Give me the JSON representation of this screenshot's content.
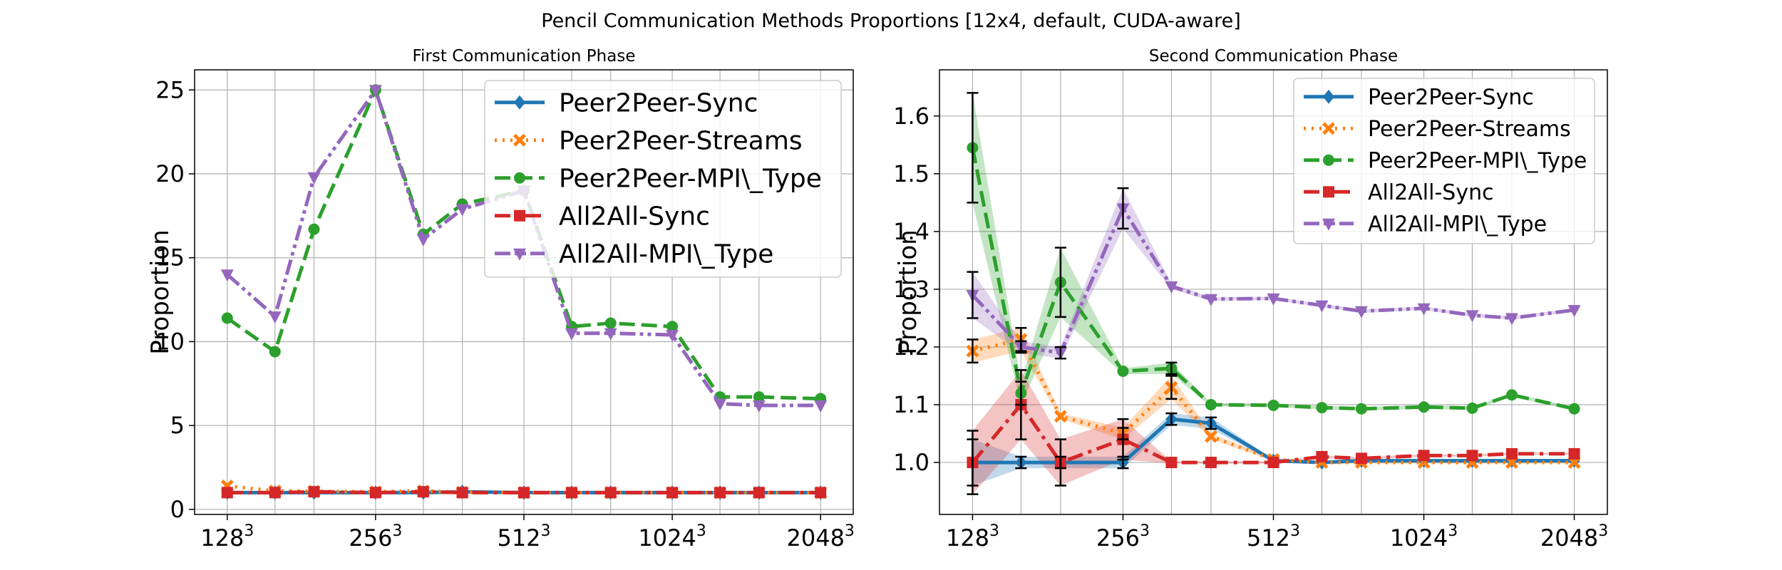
{
  "figure": {
    "title": "Pencil Communication Methods Proportions [12x4, default, CUDA-aware]"
  },
  "chart_data": [
    {
      "type": "line",
      "title": "First Communication Phase",
      "xlabel": "",
      "ylabel": "Proportion",
      "x": [
        128,
        160,
        192,
        256,
        320,
        384,
        512,
        640,
        768,
        1024,
        1280,
        1536,
        2048
      ],
      "x_ticks": [
        {
          "x": 128,
          "base": "128",
          "sup": "3"
        },
        {
          "x": 256,
          "base": "256",
          "sup": "3"
        },
        {
          "x": 512,
          "base": "512",
          "sup": "3"
        },
        {
          "x": 1024,
          "base": "1024",
          "sup": "3"
        },
        {
          "x": 2048,
          "base": "2048",
          "sup": "3"
        }
      ],
      "y_ticks": [
        "0",
        "5",
        "10",
        "15",
        "20",
        "25"
      ],
      "ylim": [
        -0.3,
        26.2
      ],
      "grid": true,
      "legend_position": "upper-right",
      "series": [
        {
          "name": "Peer2Peer-Sync",
          "color": "#1f77b4",
          "marker": "diamond",
          "dash": "solid",
          "values": [
            1.0,
            1.0,
            1.0,
            1.0,
            1.0,
            1.05,
            1.0,
            1.0,
            1.0,
            1.0,
            1.0,
            1.0,
            1.0
          ]
        },
        {
          "name": "Peer2Peer-Streams",
          "color": "#ff7f0e",
          "marker": "x",
          "dash": "dotted",
          "values": [
            1.4,
            1.1,
            1.08,
            1.05,
            1.1,
            1.02,
            1.0,
            1.0,
            1.0,
            1.0,
            1.0,
            1.0,
            1.0
          ]
        },
        {
          "name": "Peer2Peer-MPI\\_Type",
          "color": "#2ca02c",
          "marker": "circle",
          "dash": "dashed",
          "values": [
            11.4,
            9.4,
            16.7,
            25.0,
            16.4,
            18.2,
            19.0,
            10.9,
            11.1,
            10.9,
            6.7,
            6.7,
            6.6
          ]
        },
        {
          "name": "All2All-Sync",
          "color": "#d62728",
          "marker": "square",
          "dash": "dashdot",
          "values": [
            1.0,
            1.0,
            1.05,
            1.0,
            1.05,
            1.0,
            1.0,
            1.0,
            1.0,
            1.0,
            1.0,
            1.0,
            1.0
          ]
        },
        {
          "name": "All2All-MPI\\_Type",
          "color": "#9467bd",
          "marker": "triangle-down",
          "dash": "dashdotdot",
          "values": [
            14.0,
            11.5,
            19.8,
            25.0,
            16.1,
            17.9,
            19.0,
            10.5,
            10.5,
            10.4,
            6.3,
            6.2,
            6.2
          ]
        }
      ]
    },
    {
      "type": "line",
      "title": "Second Communication Phase",
      "xlabel": "",
      "ylabel": "Proportion",
      "x": [
        128,
        160,
        192,
        256,
        320,
        384,
        512,
        640,
        768,
        1024,
        1280,
        1536,
        2048
      ],
      "x_ticks": [
        {
          "x": 128,
          "base": "128",
          "sup": "3"
        },
        {
          "x": 256,
          "base": "256",
          "sup": "3"
        },
        {
          "x": 512,
          "base": "512",
          "sup": "3"
        },
        {
          "x": 1024,
          "base": "1024",
          "sup": "3"
        },
        {
          "x": 2048,
          "base": "2048",
          "sup": "3"
        }
      ],
      "y_ticks": [
        "1.0",
        "1.1",
        "1.2",
        "1.3",
        "1.4",
        "1.5",
        "1.6"
      ],
      "ylim": [
        0.91,
        1.68
      ],
      "grid": true,
      "legend_position": "upper-right",
      "series": [
        {
          "name": "Peer2Peer-Sync",
          "color": "#1f77b4",
          "marker": "diamond",
          "dash": "solid",
          "values": [
            1.0,
            1.0,
            1.0,
            1.0,
            1.075,
            1.068,
            1.003,
            1.0,
            1.003,
            1.003,
            1.003,
            1.003,
            1.003
          ],
          "error": [
            0.04,
            0.01,
            0.01,
            0.01,
            0.01,
            0.01,
            0.002,
            0.002,
            0.002,
            0.002,
            0.002,
            0.002,
            0.002
          ]
        },
        {
          "name": "Peer2Peer-Streams",
          "color": "#ff7f0e",
          "marker": "x",
          "dash": "dotted",
          "values": [
            1.193,
            1.213,
            1.08,
            1.05,
            1.13,
            1.045,
            1.005,
            1.0,
            1.0,
            1.0,
            1.0,
            1.0,
            1.0
          ],
          "error": [
            0.02,
            0.02,
            0.005,
            0.01,
            0.02,
            0.005,
            0.002,
            0.002,
            0.002,
            0.002,
            0.002,
            0.002,
            0.002
          ]
        },
        {
          "name": "Peer2Peer-MPI\\_Type",
          "color": "#2ca02c",
          "marker": "circle",
          "dash": "dashed",
          "values": [
            1.545,
            1.12,
            1.312,
            1.158,
            1.163,
            1.1,
            1.099,
            1.095,
            1.093,
            1.096,
            1.094,
            1.117,
            1.093
          ],
          "error": [
            0.095,
            0.02,
            0.06,
            0.005,
            0.01,
            0.003,
            0.003,
            0.003,
            0.003,
            0.003,
            0.003,
            0.003,
            0.003
          ]
        },
        {
          "name": "All2All-Sync",
          "color": "#d62728",
          "marker": "square",
          "dash": "dashdot",
          "values": [
            1.0,
            1.1,
            1.0,
            1.04,
            1.0,
            1.0,
            1.0,
            1.01,
            1.007,
            1.012,
            1.012,
            1.015,
            1.015
          ],
          "error": [
            0.055,
            0.06,
            0.04,
            0.035,
            0.002,
            0.002,
            0.002,
            0.002,
            0.002,
            0.002,
            0.002,
            0.002,
            0.002
          ]
        },
        {
          "name": "All2All-MPI\\_Type",
          "color": "#9467bd",
          "marker": "triangle-down",
          "dash": "dashdotdot",
          "values": [
            1.29,
            1.2,
            1.19,
            1.44,
            1.305,
            1.283,
            1.284,
            1.272,
            1.262,
            1.267,
            1.255,
            1.25,
            1.264
          ],
          "error": [
            0.04,
            0.01,
            0.01,
            0.035,
            0.005,
            0.003,
            0.003,
            0.003,
            0.003,
            0.003,
            0.003,
            0.003,
            0.003
          ]
        }
      ]
    }
  ]
}
